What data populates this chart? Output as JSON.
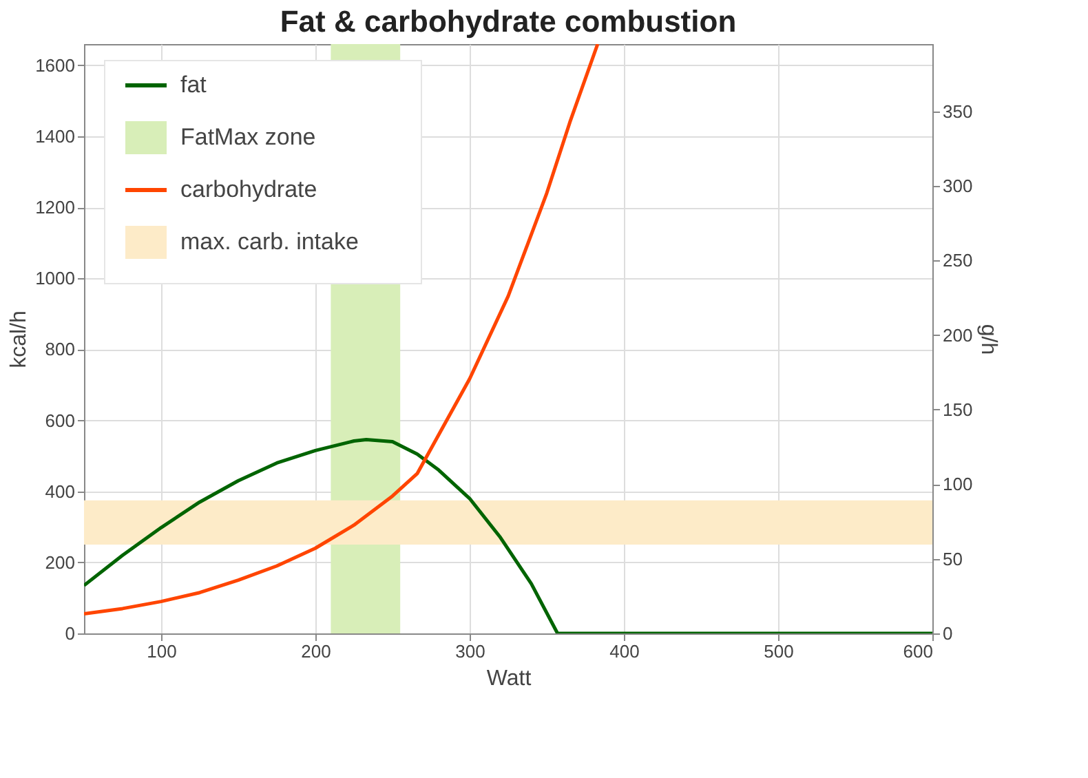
{
  "chart_data": {
    "type": "line",
    "title": "Fat & carbohydrate combustion",
    "xlabel": "Watt",
    "ylabel": "kcal/h",
    "y2label": "g/h",
    "xlim": [
      50,
      600
    ],
    "xticks": [
      100,
      200,
      300,
      400,
      500,
      600
    ],
    "ylim": [
      0,
      1660
    ],
    "yticks": [
      0,
      200,
      400,
      600,
      800,
      1000,
      1200,
      1400,
      1600
    ],
    "y2lim": [
      0,
      395
    ],
    "y2ticks": [
      0,
      50,
      100,
      150,
      200,
      250,
      300,
      350
    ],
    "grid": true,
    "legend": "top left",
    "series": [
      {
        "name": "fat",
        "color": "#006400",
        "x": [
          50,
          75,
          100,
          125,
          150,
          175,
          200,
          225,
          233,
          250,
          266,
          280,
          300,
          320,
          340,
          357,
          400,
          500,
          600
        ],
        "values": [
          135,
          220,
          298,
          370,
          430,
          480,
          515,
          542,
          546,
          540,
          505,
          460,
          380,
          270,
          140,
          0,
          0,
          0,
          0
        ]
      },
      {
        "name": "carbohydrate",
        "color": "#ff4500",
        "x": [
          50,
          75,
          100,
          125,
          150,
          175,
          200,
          225,
          250,
          266,
          280,
          300,
          325,
          350,
          365,
          383
        ],
        "values": [
          55,
          70,
          90,
          115,
          150,
          190,
          240,
          305,
          387,
          450,
          560,
          717,
          950,
          1240,
          1440,
          1660
        ]
      }
    ],
    "bands": [
      {
        "axis": "x",
        "from": 210,
        "to": 255,
        "label": "FatMax zone",
        "color": "#d8eeb8"
      },
      {
        "axis": "y",
        "from": 250,
        "to": 375,
        "label": "max. carb. intake",
        "color": "#fdebc8"
      }
    ]
  }
}
